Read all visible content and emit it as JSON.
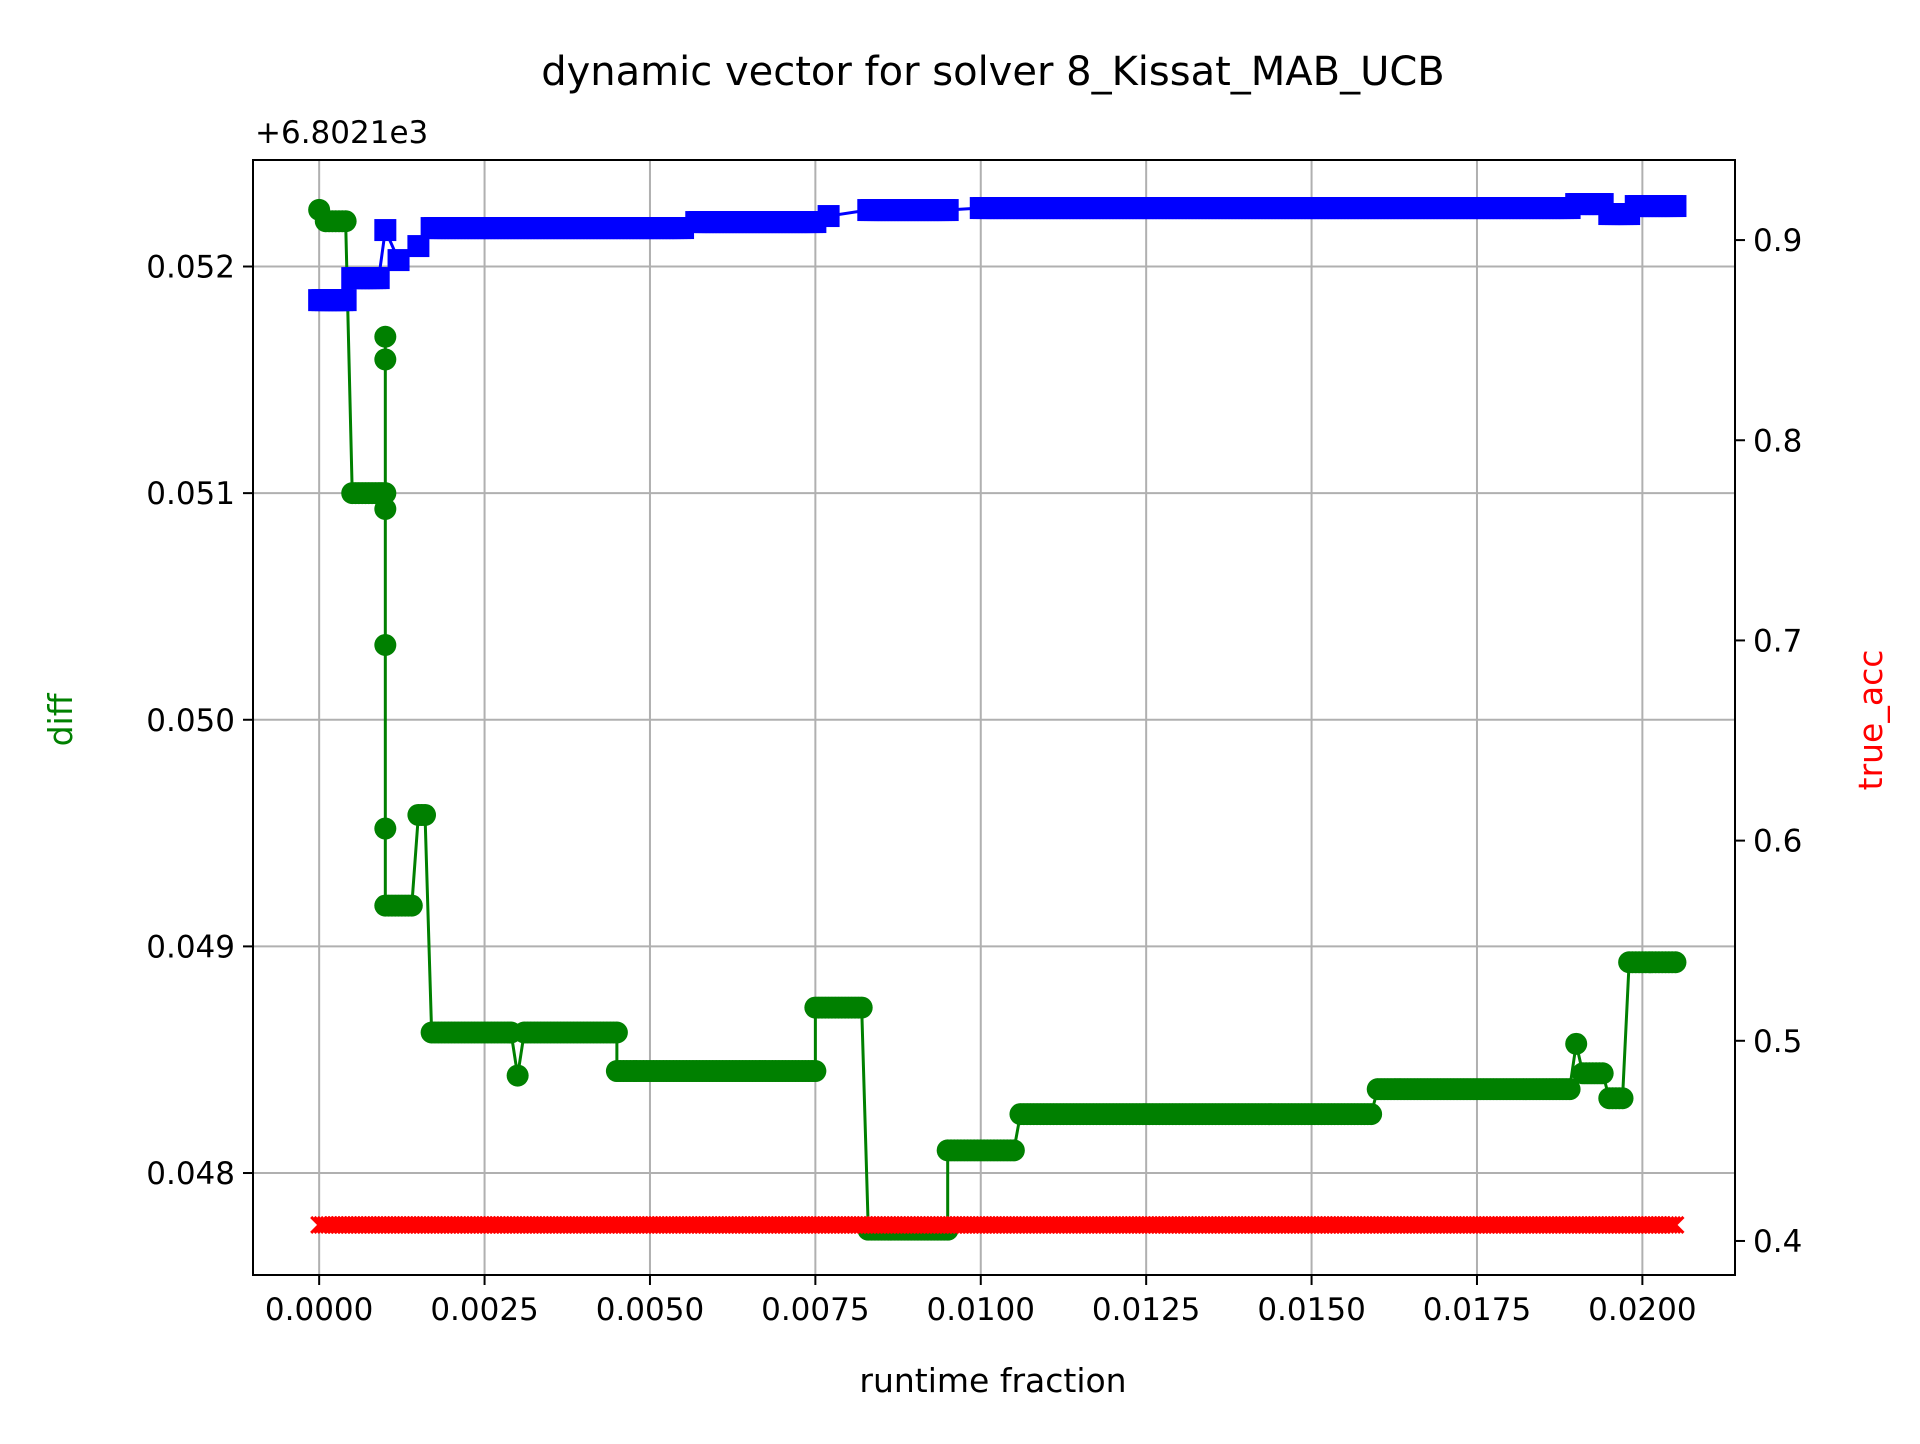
{
  "chart_data": {
    "type": "line",
    "title": "dynamic vector for solver 8_Kissat_MAB_UCB",
    "xlabel": "runtime fraction",
    "ylabel_left": "diff",
    "ylabel_right": "true_acc",
    "left_offset_text": "+6.8021e3",
    "xlim": [
      -0.001,
      0.0214
    ],
    "ylim_left": [
      0.04755,
      0.05247
    ],
    "ylim_right": [
      0.383,
      0.94
    ],
    "grid": true,
    "x_ticks": [
      {
        "value": 0.0,
        "label": "0.0000"
      },
      {
        "value": 0.0025,
        "label": "0.0025"
      },
      {
        "value": 0.005,
        "label": "0.0050"
      },
      {
        "value": 0.0075,
        "label": "0.0075"
      },
      {
        "value": 0.01,
        "label": "0.0100"
      },
      {
        "value": 0.0125,
        "label": "0.0125"
      },
      {
        "value": 0.015,
        "label": "0.0150"
      },
      {
        "value": 0.0175,
        "label": "0.0175"
      },
      {
        "value": 0.02,
        "label": "0.0200"
      }
    ],
    "y_left_ticks": [
      {
        "value": 0.048,
        "label": "0.048"
      },
      {
        "value": 0.049,
        "label": "0.049"
      },
      {
        "value": 0.05,
        "label": "0.050"
      },
      {
        "value": 0.051,
        "label": "0.051"
      },
      {
        "value": 0.052,
        "label": "0.052"
      }
    ],
    "y_right_ticks": [
      {
        "value": 0.4,
        "label": "0.4"
      },
      {
        "value": 0.5,
        "label": "0.5"
      },
      {
        "value": 0.6,
        "label": "0.6"
      },
      {
        "value": 0.7,
        "label": "0.7"
      },
      {
        "value": 0.8,
        "label": "0.8"
      },
      {
        "value": 0.9,
        "label": "0.9"
      }
    ],
    "series": [
      {
        "axis": "left",
        "marker": "circle",
        "color": "#008000",
        "points": [
          [
            0.0,
            0.05225
          ],
          [
            0.0001,
            0.0522
          ],
          [
            0.0002,
            0.0522
          ],
          [
            0.0003,
            0.0522
          ],
          [
            0.0004,
            0.0522
          ],
          [
            0.0005,
            0.051
          ],
          [
            0.0006,
            0.051
          ],
          [
            0.0007,
            0.051
          ],
          [
            0.0008,
            0.051
          ],
          [
            0.0009,
            0.051
          ],
          [
            0.001,
            0.051
          ],
          [
            0.001,
            0.05093
          ],
          [
            0.001,
            0.05033
          ],
          [
            0.001,
            0.04952
          ],
          [
            0.001,
            0.05159
          ],
          [
            0.001,
            0.05169
          ],
          [
            0.001,
            0.04918
          ],
          [
            0.0011,
            0.04918
          ],
          [
            0.0012,
            0.04918
          ],
          [
            0.0013,
            0.04918
          ],
          [
            0.0014,
            0.04918
          ],
          [
            0.0015,
            0.04958
          ],
          [
            0.0016,
            0.04958
          ],
          [
            0.0017,
            0.04862
          ],
          [
            0.0025,
            0.04862
          ],
          [
            0.0029,
            0.04862
          ],
          [
            0.003,
            0.04843
          ],
          [
            0.0031,
            0.04862
          ],
          [
            0.0035,
            0.04862
          ],
          [
            0.0045,
            0.04862
          ],
          [
            0.0045,
            0.04845
          ],
          [
            0.0055,
            0.04845
          ],
          [
            0.0065,
            0.04845
          ],
          [
            0.0075,
            0.04845
          ],
          [
            0.0075,
            0.04873
          ],
          [
            0.0082,
            0.04873
          ],
          [
            0.0083,
            0.04775
          ],
          [
            0.009,
            0.04775
          ],
          [
            0.0095,
            0.04775
          ],
          [
            0.0095,
            0.0481
          ],
          [
            0.0105,
            0.0481
          ],
          [
            0.0106,
            0.04826
          ],
          [
            0.012,
            0.04826
          ],
          [
            0.0135,
            0.04826
          ],
          [
            0.015,
            0.04826
          ],
          [
            0.0159,
            0.04826
          ],
          [
            0.016,
            0.04837
          ],
          [
            0.017,
            0.04837
          ],
          [
            0.018,
            0.04837
          ],
          [
            0.0189,
            0.04837
          ],
          [
            0.019,
            0.04857
          ],
          [
            0.0191,
            0.04844
          ],
          [
            0.0194,
            0.04844
          ],
          [
            0.0195,
            0.04833
          ],
          [
            0.0197,
            0.04833
          ],
          [
            0.0198,
            0.04893
          ],
          [
            0.0205,
            0.04893
          ]
        ]
      },
      {
        "axis": "right",
        "marker": "x",
        "color": "#ff0000",
        "x_start": 0.0,
        "x_end": 0.0205,
        "y": 0.408
      },
      {
        "axis": "right",
        "marker": "square",
        "color": "#0000ff",
        "points": [
          [
            0.0,
            0.87
          ],
          [
            0.0004,
            0.87
          ],
          [
            0.0005,
            0.881
          ],
          [
            0.0009,
            0.881
          ],
          [
            0.001,
            0.905
          ],
          [
            0.0012,
            0.89
          ],
          [
            0.0015,
            0.897
          ],
          [
            0.0017,
            0.906
          ],
          [
            0.0055,
            0.906
          ],
          [
            0.0057,
            0.909
          ],
          [
            0.0075,
            0.909
          ],
          [
            0.0077,
            0.912
          ],
          [
            0.0083,
            0.915
          ],
          [
            0.0095,
            0.915
          ],
          [
            0.01,
            0.916
          ],
          [
            0.0189,
            0.916
          ],
          [
            0.019,
            0.918
          ],
          [
            0.0194,
            0.918
          ],
          [
            0.0195,
            0.913
          ],
          [
            0.0198,
            0.913
          ],
          [
            0.0199,
            0.917
          ],
          [
            0.0205,
            0.917
          ]
        ]
      }
    ]
  }
}
